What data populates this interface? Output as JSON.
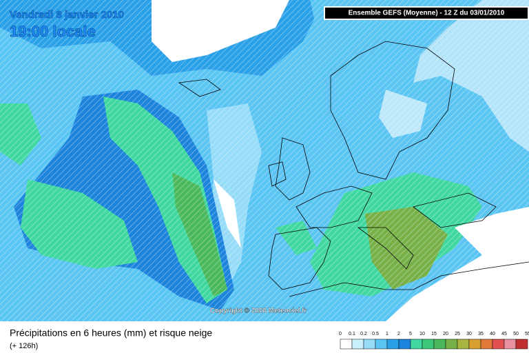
{
  "header": {
    "date": "Vendredi 8 janvier 2010",
    "time": "19:00 locale",
    "model": "Ensemble GEFS (Moyenne)  -  12 Z du 03/01/2010"
  },
  "copyright": "Copyright © 2008 Meteociel.fr",
  "footer": {
    "title": "Précipitations en 6 heures (mm) et risque neige",
    "lead": "(+ 126h)"
  },
  "legend": {
    "levels": [
      0,
      0.1,
      0.2,
      0.5,
      1,
      2,
      5,
      10,
      15,
      20,
      25,
      30,
      35,
      40,
      45,
      50,
      55
    ],
    "colors": [
      "#ffffff",
      "#c8f0fc",
      "#96dcf8",
      "#5ac4f2",
      "#2aa0e8",
      "#1c84dc",
      "#40d8a0",
      "#3cc878",
      "#4cb85c",
      "#78b048",
      "#a8b440",
      "#d8a030",
      "#e07838",
      "#e05050",
      "#e890a0",
      "#c03030"
    ]
  }
}
